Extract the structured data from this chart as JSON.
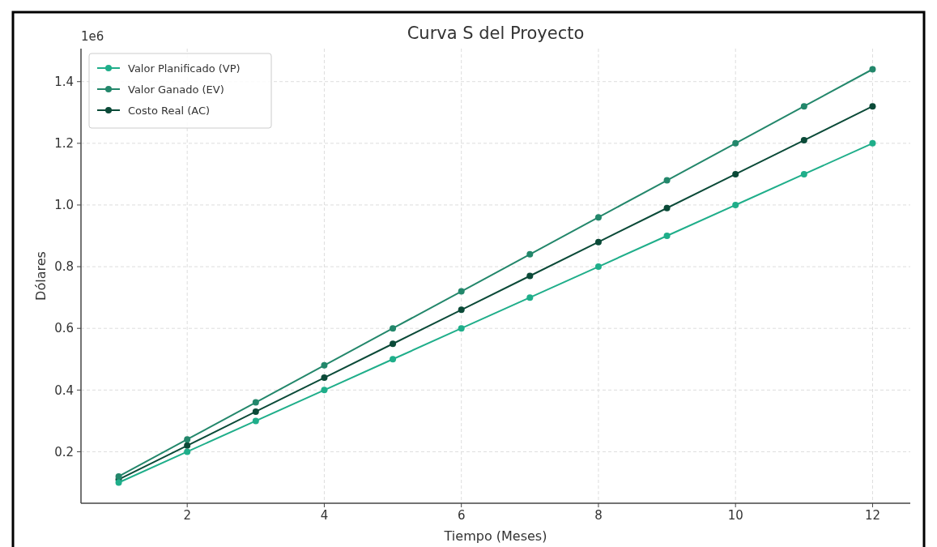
{
  "chart_data": {
    "type": "line",
    "title": "Curva S del Proyecto",
    "xlabel": "Tiempo (Meses)",
    "ylabel": "Dólares",
    "annotations": [
      "1e6"
    ],
    "x": [
      1,
      2,
      3,
      4,
      5,
      6,
      7,
      8,
      9,
      10,
      11,
      12
    ],
    "series": [
      {
        "name": "Valor Planificado (VP)",
        "color": "#1fae8a",
        "values": [
          0.1,
          0.2,
          0.3,
          0.4,
          0.5,
          0.6,
          0.7,
          0.8,
          0.9,
          1.0,
          1.1,
          1.2
        ]
      },
      {
        "name": "Valor Ganado (EV)",
        "color": "#23876b",
        "values": [
          0.12,
          0.24,
          0.36,
          0.48,
          0.6,
          0.72,
          0.84,
          0.96,
          1.08,
          1.2,
          1.32,
          1.44
        ]
      },
      {
        "name": "Costo Real (AC)",
        "color": "#0b4a38",
        "values": [
          0.11,
          0.22,
          0.33,
          0.44,
          0.55,
          0.66,
          0.77,
          0.88,
          0.99,
          1.1,
          1.21,
          1.32
        ]
      }
    ],
    "xlim": [
      0.45,
      12.55
    ],
    "ylim": [
      0.033,
      1.507
    ],
    "xticks": [
      2,
      4,
      6,
      8,
      10,
      12
    ],
    "yticks": [
      {
        "value": 0.2,
        "label": "0.2"
      },
      {
        "value": 0.4,
        "label": "0.4"
      },
      {
        "value": 0.6,
        "label": "0.6"
      },
      {
        "value": 0.8,
        "label": "0.8"
      },
      {
        "value": 1.0,
        "label": "1.0"
      },
      {
        "value": 1.2,
        "label": "1.2"
      },
      {
        "value": 1.4,
        "label": "1.4"
      }
    ],
    "grid": true,
    "legend": "top left",
    "marker": "circle",
    "line_style": "solid"
  }
}
